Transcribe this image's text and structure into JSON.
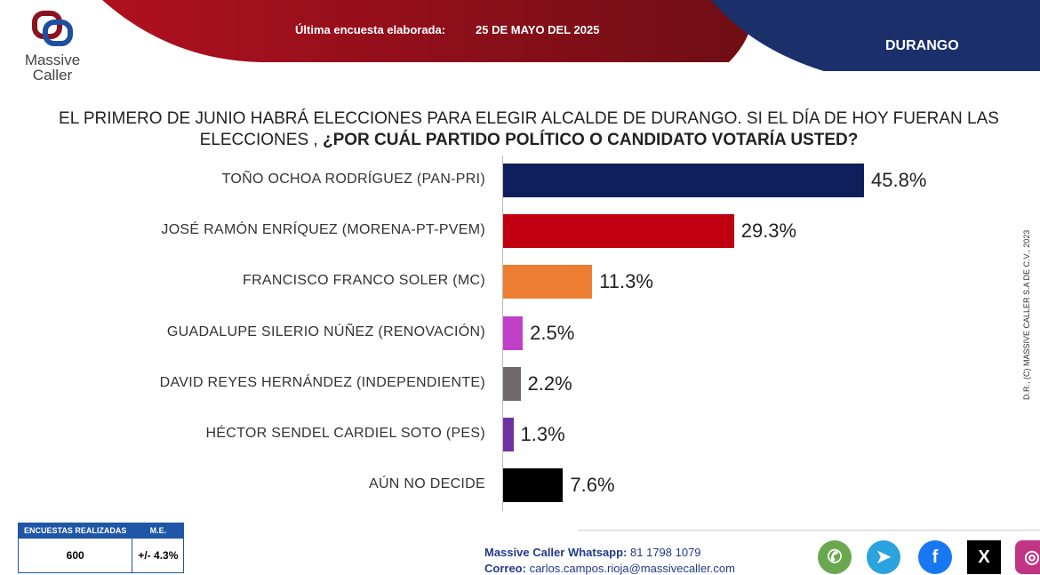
{
  "header": {
    "survey_label": "Última encuesta elaborada:",
    "survey_date": "25 DE MAYO DEL 2025",
    "region": "DURANGO",
    "logo": "Massive Caller"
  },
  "question": {
    "part1": "EL PRIMERO DE  JUNIO HABRÁ ELECCIONES PARA ELEGIR ALCALDE DE DURANGO.  SI EL DÍA DE HOY FUERAN LAS ELECCIONES , ",
    "part2": "¿POR CUÁL PARTIDO POLÍTICO O CANDIDATO VOTARÍA USTED?"
  },
  "chart_data": {
    "type": "bar",
    "orientation": "horizontal",
    "title": "¿POR CUÁL PARTIDO POLÍTICO O CANDIDATO VOTARÍA USTED?",
    "categories": [
      "TOÑO OCHOA RODRÍGUEZ (PAN-PRI)",
      "JOSÉ RAMÓN ENRÍQUEZ (MORENA-PT-PVEM)",
      "FRANCISCO FRANCO SOLER (MC)",
      "GUADALUPE SILERIO NÚÑEZ (RENOVACIÓN)",
      "DAVID REYES HERNÁNDEZ (INDEPENDIENTE)",
      "HÉCTOR SENDEL CARDIEL SOTO (PES)",
      "AÚN NO DECIDE"
    ],
    "values": [
      45.8,
      29.3,
      11.3,
      2.5,
      2.2,
      1.3,
      7.6
    ],
    "labels": [
      "45.8%",
      "29.3%",
      "11.3%",
      "2.5%",
      "2.2%",
      "1.3%",
      "7.6%"
    ],
    "colors": [
      "#0f1f5c",
      "#c00010",
      "#ed7d31",
      "#c040c8",
      "#6e6a6a",
      "#7030a0",
      "#000000"
    ],
    "xlim": [
      0,
      50
    ]
  },
  "copyright": "D.R., (C) MASSIVE CALLER S.A DE C.V., 2023",
  "stats": {
    "h1": "ENCUESTAS REALIZADAS",
    "h2": "M.E.",
    "v1": "600",
    "v2": "+/- 4.3%"
  },
  "footer": {
    "wa_label": "Massive Caller Whatsapp:",
    "wa_number": "81 1798 1079",
    "mail_label": "Correo:",
    "mail": "carlos.campos.rioja@massivecaller.com"
  }
}
